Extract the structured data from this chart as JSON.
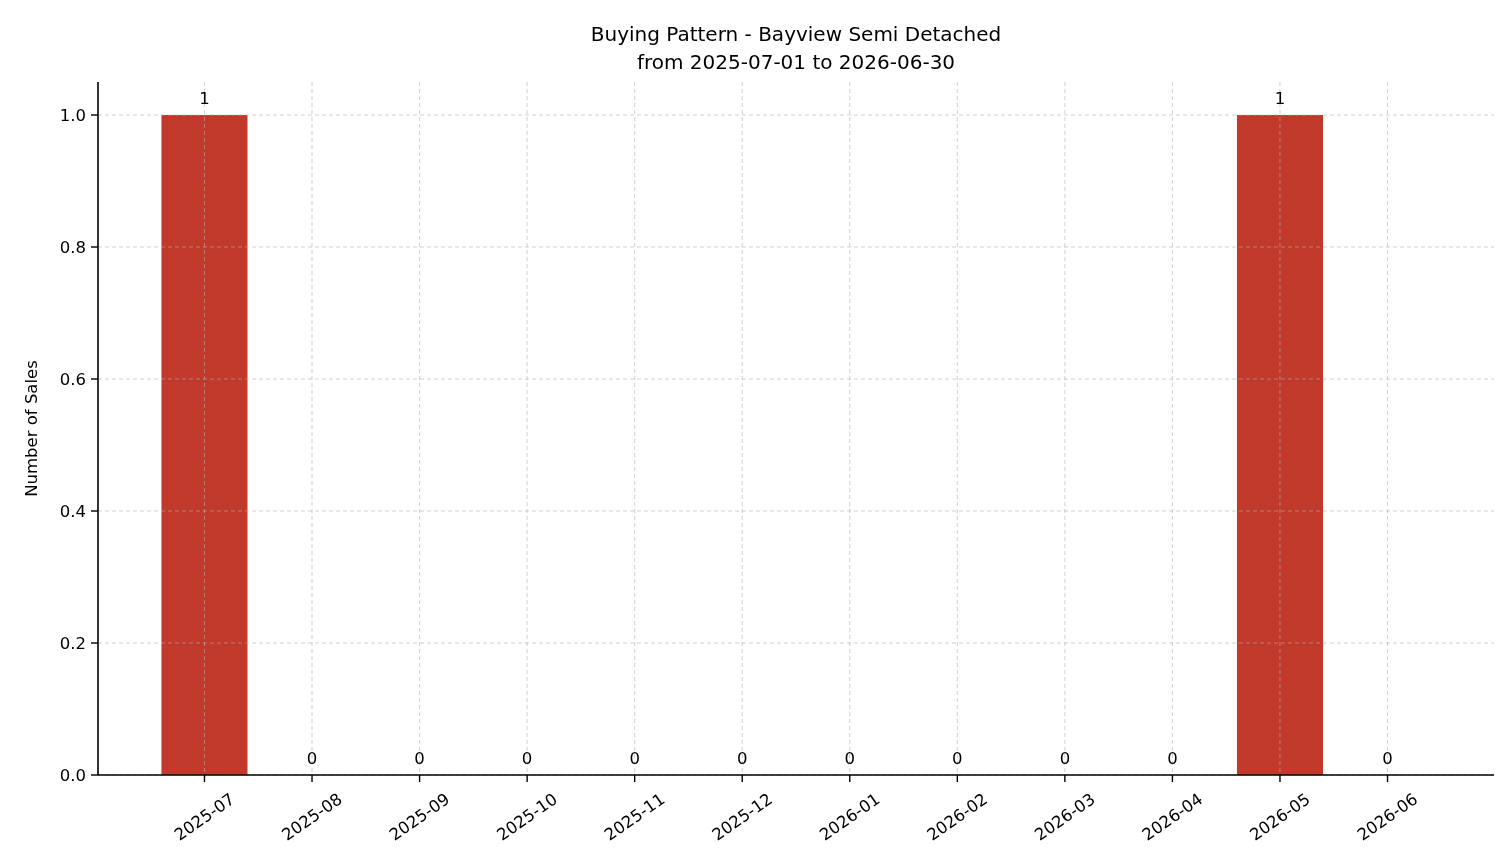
{
  "chart_data": {
    "type": "bar",
    "title": "Buying Pattern - Bayview Semi Detached",
    "subtitle": "from 2025-07-01 to 2026-06-30",
    "ylabel": "Number of Sales",
    "categories": [
      "2025-07",
      "2025-08",
      "2025-09",
      "2025-10",
      "2025-11",
      "2025-12",
      "2026-01",
      "2026-02",
      "2026-03",
      "2026-04",
      "2026-05",
      "2026-06"
    ],
    "values": [
      1,
      0,
      0,
      0,
      0,
      0,
      0,
      0,
      0,
      0,
      1,
      0
    ],
    "color": "#c0392b",
    "ylim": [
      0,
      1.05
    ],
    "yticks": [
      {
        "value": 0,
        "label": "0.0"
      },
      0.2,
      0.4,
      0.6,
      0.8,
      {
        "value": 1,
        "label": "1.0"
      }
    ],
    "grid": true,
    "data_labels": true
  }
}
